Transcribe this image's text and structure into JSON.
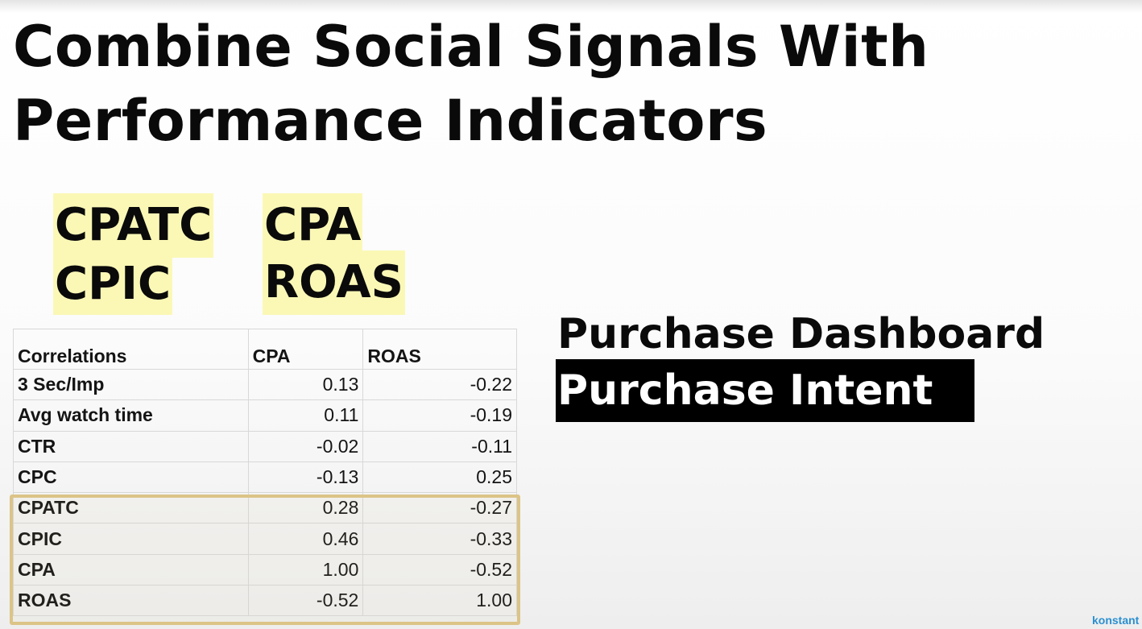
{
  "slide": {
    "title_line1": "Combine Social Signals With",
    "title_line2": "Performance Indicators"
  },
  "highlights": {
    "left": [
      "CPATC",
      "CPIC"
    ],
    "right": [
      "CPA",
      "ROAS"
    ],
    "color": "#fbf8b6"
  },
  "table": {
    "headers": [
      "Correlations",
      "CPA",
      "ROAS"
    ],
    "rows": [
      {
        "label": "3 Sec/Imp",
        "cpa": "0.13",
        "roas": "-0.22"
      },
      {
        "label": "Avg watch time",
        "cpa": "0.11",
        "roas": "-0.19"
      },
      {
        "label": "CTR",
        "cpa": "-0.02",
        "roas": "-0.11"
      },
      {
        "label": "CPC",
        "cpa": "-0.13",
        "roas": "0.25"
      },
      {
        "label": "CPATC",
        "cpa": "0.28",
        "roas": "-0.27"
      },
      {
        "label": "CPIC",
        "cpa": "0.46",
        "roas": "-0.33"
      },
      {
        "label": "CPA",
        "cpa": "1.00",
        "roas": "-0.52"
      },
      {
        "label": "ROAS",
        "cpa": "-0.52",
        "roas": "1.00"
      }
    ],
    "focus_border_color": "#dcc487"
  },
  "right_panel": {
    "heading": "Purchase Dashboard",
    "badge": "Purchase Intent"
  },
  "brand": {
    "text": "konstant",
    "color": "#2a8fd0"
  }
}
